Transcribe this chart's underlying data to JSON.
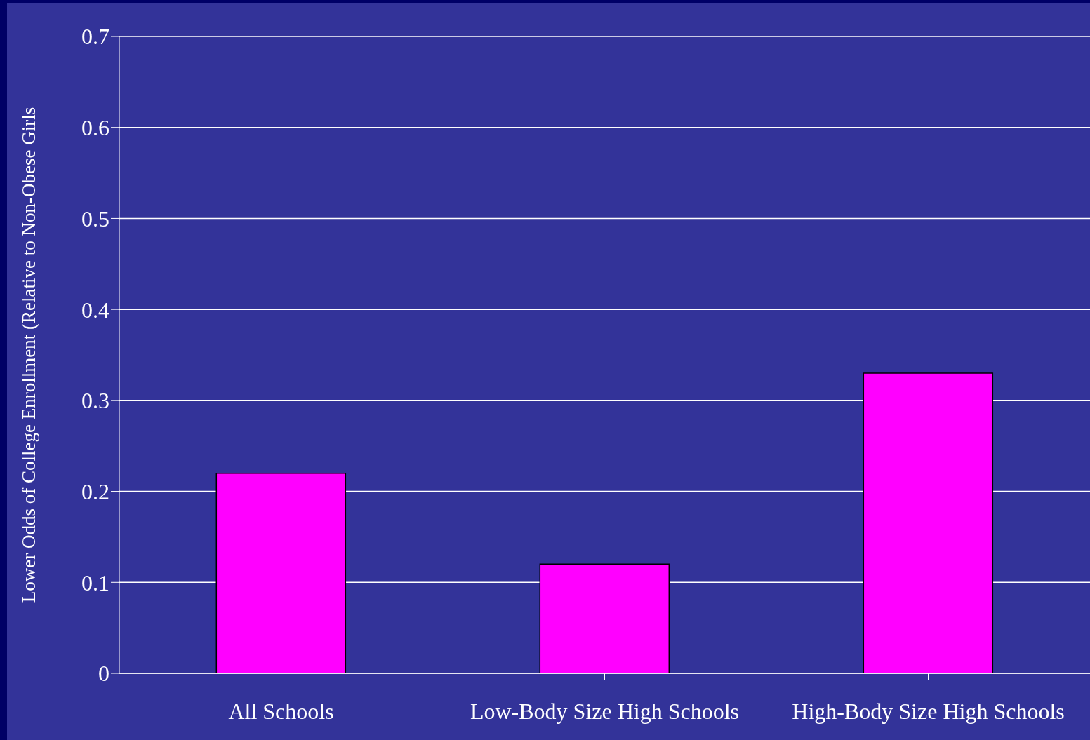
{
  "chart_data": {
    "type": "bar",
    "ylabel": "Lower Odds of College Enrollment (Relative to Non-Obese Girls",
    "categories": [
      "All Schools",
      "Low-Body Size High Schools",
      "High-Body Size High Schools"
    ],
    "values": [
      0.22,
      0.12,
      0.33
    ],
    "color": "#ff00ff",
    "ylim": [
      0,
      0.7
    ],
    "yticks": [
      0,
      0.1,
      0.2,
      0.3,
      0.4,
      0.5,
      0.6,
      0.7
    ],
    "grid": "y"
  }
}
